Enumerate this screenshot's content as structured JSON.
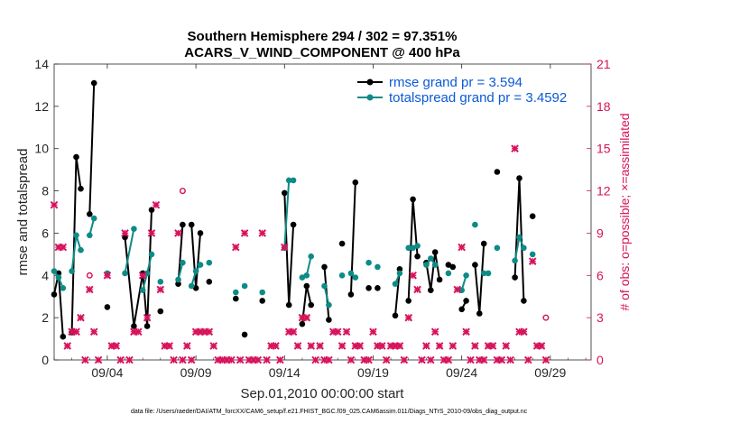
{
  "chart_data": {
    "type": "line",
    "title": [
      "Southern Hemisphere 294 / 302 = 97.351%",
      "ACARS_V_WIND_COMPONENT @ 400 hPa"
    ],
    "xlabel": "Sep.01,2010 00:00:00 start",
    "ylabel": "rmse and totalspread",
    "ylabel_right": "# of obs: o=possible; ×=assimilated",
    "xlim": [
      1,
      31.3
    ],
    "ylim": [
      0,
      14
    ],
    "ylim_right": [
      0,
      21
    ],
    "x_ticks": [
      4,
      9,
      14,
      19,
      24,
      29
    ],
    "x_tick_labels": [
      "09/04",
      "09/09",
      "09/14",
      "09/19",
      "09/24",
      "09/29"
    ],
    "y_ticks": [
      0,
      2,
      4,
      6,
      8,
      10,
      12,
      14
    ],
    "y_ticks_right": [
      0,
      3,
      6,
      9,
      12,
      15,
      18,
      21
    ],
    "legend_position": "top-right",
    "colors": {
      "rmse": "#000000",
      "totalspread": "#0e8b86",
      "obs": "#d6125b",
      "legend_text": "#0b5ad6"
    },
    "series": [
      {
        "name": "rmse grand pr = 3.594",
        "color": "#000000",
        "points": [
          [
            1.0,
            3.1
          ],
          [
            1.25,
            4.1
          ],
          [
            1.5,
            1.1
          ],
          [
            1.75,
            null
          ],
          [
            2.0,
            1.3
          ],
          [
            2.25,
            9.6
          ],
          [
            2.5,
            8.1
          ],
          [
            2.75,
            null
          ],
          [
            3.0,
            6.9
          ],
          [
            3.25,
            13.1
          ],
          [
            3.5,
            null
          ],
          [
            4.0,
            2.5
          ],
          [
            4.5,
            null
          ],
          [
            5.0,
            5.8
          ],
          [
            5.5,
            1.6
          ],
          [
            6.0,
            4.1
          ],
          [
            6.25,
            1.6
          ],
          [
            6.5,
            7.1
          ],
          [
            6.75,
            null
          ],
          [
            7.0,
            2.3
          ],
          [
            7.5,
            null
          ],
          [
            8.0,
            3.6
          ],
          [
            8.25,
            6.4
          ],
          [
            8.5,
            null
          ],
          [
            8.75,
            6.4
          ],
          [
            9.0,
            3.4
          ],
          [
            9.25,
            6.0
          ],
          [
            9.5,
            null
          ],
          [
            9.75,
            3.7
          ],
          [
            10.0,
            null
          ],
          [
            11.25,
            2.9
          ],
          [
            11.5,
            null
          ],
          [
            11.75,
            1.2
          ],
          [
            12.0,
            null
          ],
          [
            12.75,
            2.8
          ],
          [
            13.0,
            null
          ],
          [
            14.0,
            7.9
          ],
          [
            14.25,
            2.6
          ],
          [
            14.5,
            6.4
          ],
          [
            14.75,
            null
          ],
          [
            15.0,
            1.7
          ],
          [
            15.25,
            3.5
          ],
          [
            15.5,
            2.6
          ],
          [
            15.75,
            null
          ],
          [
            16.25,
            4.4
          ],
          [
            16.5,
            1.9
          ],
          [
            16.75,
            null
          ],
          [
            17.25,
            5.5
          ],
          [
            17.5,
            null
          ],
          [
            17.75,
            3.1
          ],
          [
            18.0,
            8.4
          ],
          [
            18.25,
            null
          ],
          [
            18.75,
            3.4
          ],
          [
            19.0,
            null
          ],
          [
            19.25,
            3.4
          ],
          [
            19.5,
            null
          ],
          [
            20.25,
            2.1
          ],
          [
            20.5,
            4.3
          ],
          [
            20.75,
            null
          ],
          [
            21.0,
            2.8
          ],
          [
            21.25,
            7.6
          ],
          [
            21.5,
            4.9
          ],
          [
            21.75,
            null
          ],
          [
            22.0,
            4.6
          ],
          [
            22.25,
            3.3
          ],
          [
            22.5,
            5.1
          ],
          [
            22.75,
            3.8
          ],
          [
            23.0,
            null
          ],
          [
            23.25,
            4.5
          ],
          [
            23.5,
            4.4
          ],
          [
            23.75,
            null
          ],
          [
            24.0,
            2.4
          ],
          [
            24.25,
            2.8
          ],
          [
            24.5,
            null
          ],
          [
            24.75,
            4.5
          ],
          [
            25.0,
            2.2
          ],
          [
            25.25,
            5.5
          ],
          [
            25.5,
            null
          ],
          [
            26.0,
            8.9
          ],
          [
            26.5,
            null
          ],
          [
            27.0,
            3.9
          ],
          [
            27.25,
            8.6
          ],
          [
            27.5,
            2.8
          ],
          [
            27.75,
            null
          ],
          [
            28.0,
            6.8
          ],
          [
            28.5,
            null
          ]
        ]
      },
      {
        "name": "totalspread grand pr = 3.4592",
        "color": "#0e8b86",
        "points": [
          [
            1.0,
            4.2
          ],
          [
            1.25,
            3.9
          ],
          [
            1.5,
            3.4
          ],
          [
            1.75,
            null
          ],
          [
            2.0,
            4.2
          ],
          [
            2.25,
            5.9
          ],
          [
            2.5,
            5.2
          ],
          [
            2.75,
            null
          ],
          [
            3.0,
            5.9
          ],
          [
            3.25,
            6.7
          ],
          [
            3.5,
            null
          ],
          [
            4.0,
            4.1
          ],
          [
            4.5,
            null
          ],
          [
            5.0,
            4.1
          ],
          [
            5.5,
            6.2
          ],
          [
            5.75,
            null
          ],
          [
            6.0,
            3.3
          ],
          [
            6.25,
            4.1
          ],
          [
            6.5,
            5.0
          ],
          [
            6.75,
            null
          ],
          [
            7.0,
            3.7
          ],
          [
            7.5,
            null
          ],
          [
            8.0,
            3.8
          ],
          [
            8.25,
            4.6
          ],
          [
            8.5,
            null
          ],
          [
            8.75,
            3.5
          ],
          [
            9.0,
            4.2
          ],
          [
            9.25,
            4.5
          ],
          [
            9.5,
            null
          ],
          [
            9.75,
            4.6
          ],
          [
            10.0,
            null
          ],
          [
            11.25,
            3.2
          ],
          [
            11.5,
            null
          ],
          [
            11.75,
            3.5
          ],
          [
            12.0,
            null
          ],
          [
            12.75,
            3.2
          ],
          [
            13.0,
            null
          ],
          [
            14.0,
            5.3
          ],
          [
            14.25,
            8.5
          ],
          [
            14.5,
            8.5
          ],
          [
            14.75,
            null
          ],
          [
            15.0,
            3.9
          ],
          [
            15.25,
            4.0
          ],
          [
            15.5,
            4.9
          ],
          [
            15.75,
            null
          ],
          [
            16.25,
            3.5
          ],
          [
            16.5,
            2.6
          ],
          [
            16.75,
            null
          ],
          [
            17.25,
            4.0
          ],
          [
            17.5,
            null
          ],
          [
            17.75,
            4.1
          ],
          [
            18.0,
            3.9
          ],
          [
            18.25,
            null
          ],
          [
            18.75,
            4.6
          ],
          [
            19.0,
            null
          ],
          [
            19.25,
            4.4
          ],
          [
            19.5,
            null
          ],
          [
            20.25,
            3.6
          ],
          [
            20.5,
            4.1
          ],
          [
            20.75,
            null
          ],
          [
            21.0,
            5.3
          ],
          [
            21.25,
            5.3
          ],
          [
            21.5,
            5.4
          ],
          [
            21.75,
            null
          ],
          [
            22.0,
            4.5
          ],
          [
            22.25,
            4.8
          ],
          [
            22.5,
            4.5
          ],
          [
            22.75,
            null
          ],
          [
            23.25,
            4.1
          ],
          [
            23.5,
            null
          ],
          [
            24.0,
            3.3
          ],
          [
            24.25,
            4.0
          ],
          [
            24.5,
            null
          ],
          [
            24.75,
            6.4
          ],
          [
            25.0,
            null
          ],
          [
            25.25,
            4.1
          ],
          [
            25.5,
            4.1
          ],
          [
            25.75,
            null
          ],
          [
            26.0,
            5.3
          ],
          [
            26.5,
            null
          ],
          [
            27.0,
            4.7
          ],
          [
            27.25,
            5.8
          ],
          [
            27.5,
            5.3
          ],
          [
            27.75,
            null
          ],
          [
            28.0,
            5.0
          ],
          [
            28.5,
            null
          ]
        ]
      },
      {
        "name": "# of obs possible (o)",
        "color": "#d6125b",
        "marker": "o",
        "points": [
          [
            3.0,
            6.0
          ],
          [
            8.25,
            12.0
          ],
          [
            28.75,
            3.0
          ]
        ]
      },
      {
        "name": "# of obs assimilated (×)",
        "color": "#d6125b",
        "marker": "x",
        "points": [
          [
            1.0,
            11
          ],
          [
            1.25,
            8
          ],
          [
            1.5,
            8
          ],
          [
            1.75,
            1
          ],
          [
            2.0,
            2
          ],
          [
            2.25,
            2
          ],
          [
            2.5,
            3
          ],
          [
            2.75,
            0
          ],
          [
            3.0,
            5
          ],
          [
            3.25,
            2
          ],
          [
            3.5,
            0
          ],
          [
            4.0,
            6
          ],
          [
            4.25,
            1
          ],
          [
            4.5,
            1
          ],
          [
            4.75,
            0
          ],
          [
            5.0,
            9
          ],
          [
            5.25,
            0
          ],
          [
            5.5,
            2
          ],
          [
            5.75,
            2
          ],
          [
            6.0,
            6
          ],
          [
            6.25,
            3
          ],
          [
            6.5,
            9
          ],
          [
            6.75,
            11
          ],
          [
            7.0,
            5
          ],
          [
            7.25,
            1
          ],
          [
            7.5,
            1
          ],
          [
            7.75,
            0
          ],
          [
            8.0,
            9
          ],
          [
            8.25,
            0
          ],
          [
            8.5,
            1
          ],
          [
            8.75,
            0
          ],
          [
            9.0,
            2
          ],
          [
            9.25,
            2
          ],
          [
            9.5,
            2
          ],
          [
            9.75,
            2
          ],
          [
            10.0,
            1
          ],
          [
            10.25,
            0
          ],
          [
            10.5,
            0
          ],
          [
            10.75,
            0
          ],
          [
            11.0,
            0
          ],
          [
            11.25,
            8
          ],
          [
            11.5,
            0
          ],
          [
            11.75,
            9
          ],
          [
            12.0,
            0
          ],
          [
            12.25,
            0
          ],
          [
            12.5,
            0
          ],
          [
            12.75,
            9
          ],
          [
            13.0,
            0
          ],
          [
            13.25,
            1
          ],
          [
            13.5,
            1
          ],
          [
            13.75,
            0
          ],
          [
            14.0,
            8
          ],
          [
            14.25,
            2
          ],
          [
            14.5,
            2
          ],
          [
            14.75,
            1
          ],
          [
            15.0,
            3
          ],
          [
            15.25,
            3
          ],
          [
            15.5,
            1
          ],
          [
            15.75,
            0
          ],
          [
            16.0,
            1
          ],
          [
            16.25,
            0
          ],
          [
            16.5,
            0
          ],
          [
            16.75,
            2
          ],
          [
            17.0,
            2
          ],
          [
            17.25,
            1
          ],
          [
            17.5,
            2
          ],
          [
            17.75,
            0
          ],
          [
            18.0,
            1
          ],
          [
            18.25,
            1
          ],
          [
            18.5,
            0
          ],
          [
            18.75,
            0
          ],
          [
            19.0,
            2
          ],
          [
            19.25,
            1
          ],
          [
            19.5,
            1
          ],
          [
            19.75,
            0
          ],
          [
            20.0,
            1
          ],
          [
            20.25,
            1
          ],
          [
            20.5,
            1
          ],
          [
            20.75,
            0
          ],
          [
            21.0,
            3
          ],
          [
            21.25,
            6
          ],
          [
            21.5,
            5
          ],
          [
            21.75,
            0
          ],
          [
            22.0,
            1
          ],
          [
            22.25,
            0
          ],
          [
            22.5,
            2
          ],
          [
            22.75,
            1
          ],
          [
            23.0,
            0
          ],
          [
            23.25,
            0
          ],
          [
            23.5,
            1
          ],
          [
            23.75,
            5
          ],
          [
            24.0,
            8
          ],
          [
            24.25,
            2
          ],
          [
            24.5,
            0
          ],
          [
            24.75,
            1
          ],
          [
            25.0,
            0
          ],
          [
            25.25,
            0
          ],
          [
            25.5,
            1
          ],
          [
            25.75,
            1
          ],
          [
            26.0,
            0
          ],
          [
            26.25,
            0
          ],
          [
            26.5,
            1
          ],
          [
            26.75,
            0
          ],
          [
            27.0,
            15
          ],
          [
            27.25,
            2
          ],
          [
            27.5,
            2
          ],
          [
            27.75,
            0
          ],
          [
            28.0,
            7
          ],
          [
            28.25,
            1
          ],
          [
            28.5,
            1
          ],
          [
            28.75,
            0
          ]
        ]
      }
    ]
  },
  "footnote": "data file: /Users/raeder/DAI/ATM_forcXX/CAM6_setup/f.e21.FHIST_BGC.f09_025.CAM6assim.011/Diags_NTrS_2010-09/obs_diag_output.nc"
}
